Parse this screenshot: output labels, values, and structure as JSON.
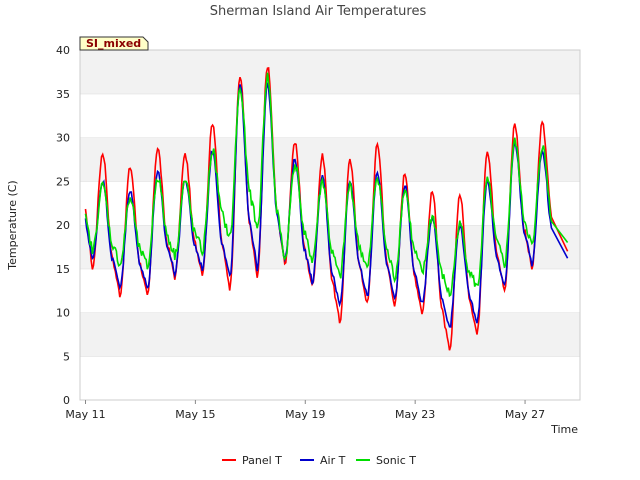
{
  "chart_data": {
    "type": "line",
    "title": "Sherman Island Air Temperatures",
    "badge": "SI_mixed",
    "xlabel": "Time",
    "ylabel": "Temperature (C)",
    "ylim": [
      0,
      40
    ],
    "yticks": [
      0,
      5,
      10,
      15,
      20,
      25,
      30,
      35,
      40
    ],
    "xlim": [
      "2024-05-11",
      "2024-05-29"
    ],
    "xticks": [
      {
        "label": "May 11",
        "day": 11
      },
      {
        "label": "May 15",
        "day": 15
      },
      {
        "label": "May 19",
        "day": 19
      },
      {
        "label": "May 23",
        "day": 23
      },
      {
        "label": "May 27",
        "day": 27
      }
    ],
    "grid": "horizontal bands",
    "legend_position": "bottom",
    "series": [
      {
        "name": "Panel T",
        "color": "#ff0000",
        "daily_min": [
          15.0,
          12.0,
          11.8,
          14.0,
          14.5,
          12.8,
          14.0,
          15.5,
          13.0,
          8.8,
          11.0,
          10.8,
          10.0,
          5.5,
          7.5,
          12.5,
          15.0
        ],
        "daily_max": [
          28.2,
          26.6,
          28.8,
          28.0,
          31.7,
          37.0,
          38.2,
          29.3,
          27.9,
          27.3,
          29.2,
          25.9,
          23.8,
          23.5,
          28.5,
          31.5,
          31.6
        ],
        "end_value": 17.0
      },
      {
        "name": "Air T",
        "color": "#0000cc",
        "daily_min": [
          16.0,
          13.0,
          12.8,
          14.5,
          15.0,
          14.0,
          15.0,
          16.0,
          13.5,
          10.8,
          11.8,
          11.5,
          11.0,
          8.3,
          9.0,
          13.0,
          15.5
        ],
        "daily_max": [
          25.0,
          23.8,
          26.0,
          25.2,
          28.5,
          35.8,
          36.0,
          27.5,
          25.5,
          25.0,
          26.0,
          24.5,
          21.0,
          20.0,
          25.0,
          29.5,
          28.5
        ],
        "end_value": 16.2
      },
      {
        "name": "Sonic T",
        "color": "#00dd00",
        "daily_min": [
          17.0,
          15.5,
          15.2,
          16.5,
          17.0,
          18.5,
          19.5,
          16.0,
          16.0,
          14.0,
          15.0,
          14.0,
          14.5,
          12.0,
          12.8,
          15.5,
          17.5
        ],
        "daily_max": [
          24.5,
          23.0,
          25.5,
          25.0,
          28.5,
          35.5,
          37.0,
          27.0,
          25.0,
          24.5,
          25.5,
          24.0,
          21.0,
          20.0,
          25.0,
          29.5,
          29.0
        ],
        "end_value": 18.0
      }
    ]
  }
}
